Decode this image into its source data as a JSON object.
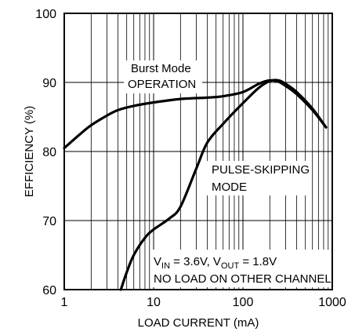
{
  "chart_data": {
    "type": "line",
    "xlabel": "LOAD CURRENT (mA)",
    "ylabel": "EFFICIENCY (%)",
    "xscale": "log",
    "xlim": [
      1,
      1000
    ],
    "ylim": [
      60,
      100
    ],
    "grid": true,
    "x_tick_labels": [
      "1",
      "10",
      "100",
      "1000"
    ],
    "y_tick_labels": [
      "60",
      "70",
      "80",
      "90",
      "100"
    ],
    "series": [
      {
        "name": "Burst Mode OPERATION",
        "x": [
          1,
          1.5,
          2,
          3,
          4,
          6,
          10,
          20,
          40,
          60,
          100,
          150,
          200,
          250,
          300,
          400,
          600,
          850
        ],
        "y": [
          80.5,
          82.5,
          83.8,
          85.2,
          86,
          86.6,
          87.1,
          87.6,
          87.8,
          88,
          88.6,
          89.8,
          90.3,
          90.1,
          89.5,
          88.3,
          86,
          83.5
        ]
      },
      {
        "name": "PULSE-SKIPPING MODE",
        "x": [
          4.3,
          5,
          6,
          8,
          10,
          15,
          20,
          30,
          40,
          60,
          100,
          150,
          200,
          250,
          300,
          400,
          600,
          850
        ],
        "y": [
          60,
          62.5,
          65,
          67.5,
          68.7,
          70.3,
          72,
          77.5,
          81.3,
          84,
          87,
          89.2,
          90.2,
          90.3,
          89.8,
          88.6,
          86.2,
          83.5
        ]
      }
    ],
    "annotations": {
      "burst_line1": "Burst Mode",
      "burst_line2": "OPERATION",
      "pulse_line1": "PULSE-SKIPPING",
      "pulse_line2": "MODE",
      "condition_vin": "V",
      "condition_vin_sub": "IN",
      "condition_mid": " = 3.6V, V",
      "condition_vout_sub": "OUT",
      "condition_end": " = 1.8V",
      "condition_line2": "NO LOAD ON OTHER CHANNEL"
    }
  }
}
